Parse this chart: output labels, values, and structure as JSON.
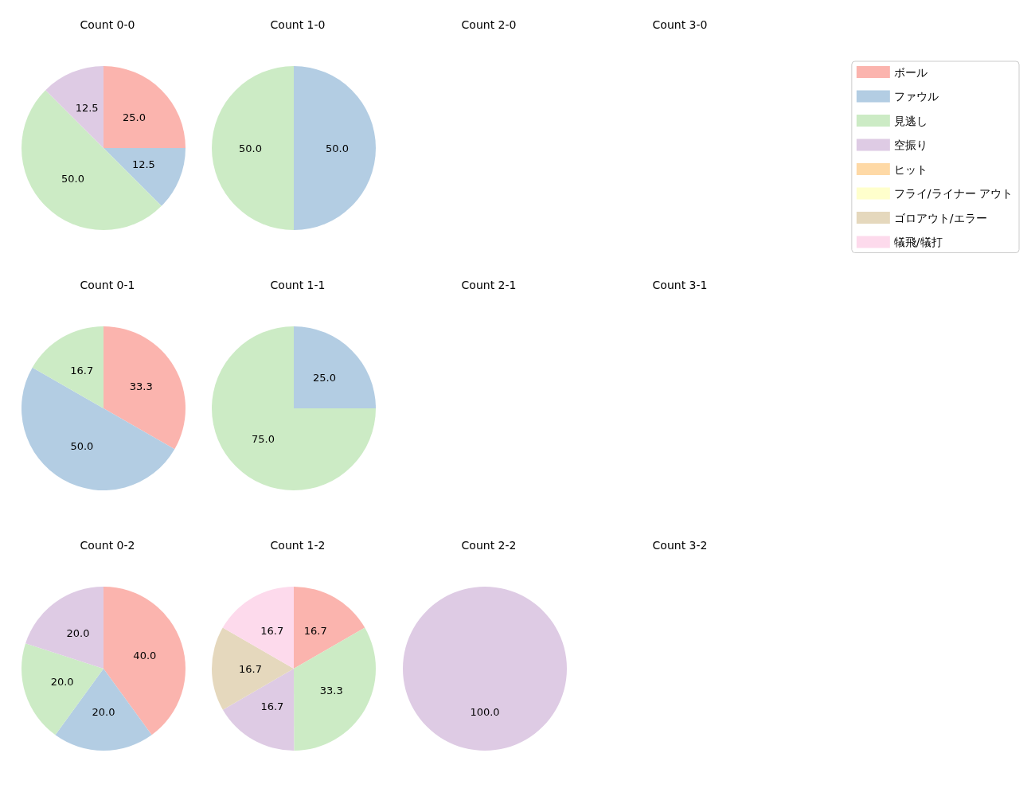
{
  "chart_data": [
    {
      "type": "pie",
      "title": "Count 0-0",
      "categories": [
        "ボール",
        "ファウル",
        "見逃し",
        "空振り",
        "ヒット",
        "フライ/ライナー アウト",
        "ゴロアウト/エラー",
        "犠飛/犠打"
      ],
      "values": [
        25.0,
        12.5,
        50.0,
        12.5,
        0,
        0,
        0,
        0
      ],
      "colors": [
        "#fbb4ae",
        "#b3cde3",
        "#ccebc5",
        "#decbe4",
        "#fed9a6",
        "#ffffcc",
        "#e5d8bd",
        "#fddaec"
      ],
      "value_labels": [
        "25.0",
        "12.5",
        "50.0",
        "12.5",
        null,
        null,
        null,
        null
      ],
      "legend": "right"
    },
    {
      "type": "pie",
      "title": "Count 1-0",
      "categories": [
        null,
        null
      ],
      "values": [
        50.0,
        50.0
      ],
      "colors": [
        "#b3cde3",
        "#ccebc5"
      ],
      "value_labels": [
        "50.0",
        "50.0"
      ]
    },
    {
      "type": "other",
      "title": "Count 2-0"
    },
    {
      "type": "other",
      "title": "Count 3-0"
    },
    {
      "type": "pie",
      "title": "Count 0-1",
      "categories": [
        null,
        null,
        null
      ],
      "values": [
        33.3,
        50.0,
        16.7
      ],
      "colors": [
        "#fbb4ae",
        "#b3cde3",
        "#ccebc5"
      ],
      "value_labels": [
        "33.3",
        "50.0",
        "16.7"
      ]
    },
    {
      "type": "pie",
      "title": "Count 1-1",
      "categories": [
        null,
        null
      ],
      "values": [
        25.0,
        75.0
      ],
      "colors": [
        "#b3cde3",
        "#ccebc5"
      ],
      "value_labels": [
        "25.0",
        "75.0"
      ]
    },
    {
      "type": "other",
      "title": "Count 2-1"
    },
    {
      "type": "other",
      "title": "Count 3-1"
    },
    {
      "type": "pie",
      "title": "Count 0-2",
      "categories": [
        null,
        null,
        null,
        null
      ],
      "values": [
        40.0,
        20.0,
        20.0,
        20.0
      ],
      "colors": [
        "#fbb4ae",
        "#b3cde3",
        "#ccebc5",
        "#decbe4"
      ],
      "value_labels": [
        "40.0",
        "20.0",
        "20.0",
        "20.0"
      ]
    },
    {
      "type": "pie",
      "title": "Count 1-2",
      "categories": [
        null,
        null,
        null,
        null,
        null
      ],
      "values": [
        16.7,
        33.3,
        16.7,
        16.7,
        16.7
      ],
      "colors": [
        "#fbb4ae",
        "#ccebc5",
        "#decbe4",
        "#e5d8bd",
        "#fddaec"
      ],
      "value_labels": [
        "16.7",
        "33.3",
        "16.7",
        "16.7",
        "16.7"
      ]
    },
    {
      "type": "pie",
      "title": "Count 2-2",
      "categories": [
        null
      ],
      "values": [
        100.0
      ],
      "colors": [
        "#decbe4"
      ],
      "value_labels": [
        "100.0"
      ]
    },
    {
      "type": "other",
      "title": "Count 3-2"
    }
  ]
}
